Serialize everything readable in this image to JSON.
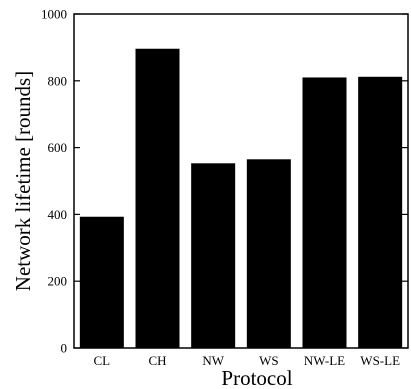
{
  "chart_data": {
    "type": "bar",
    "categories": [
      "CL",
      "CH",
      "NW",
      "WS",
      "NW-LE",
      "WS-LE"
    ],
    "values": [
      393,
      896,
      553,
      565,
      810,
      812
    ],
    "xlabel": "Protocol",
    "ylabel": "Network lifetime [rounds]",
    "ylim": [
      0,
      1000
    ],
    "yticks": [
      0,
      200,
      400,
      600,
      800,
      1000
    ],
    "bar_color": "#000000",
    "grid": false
  }
}
